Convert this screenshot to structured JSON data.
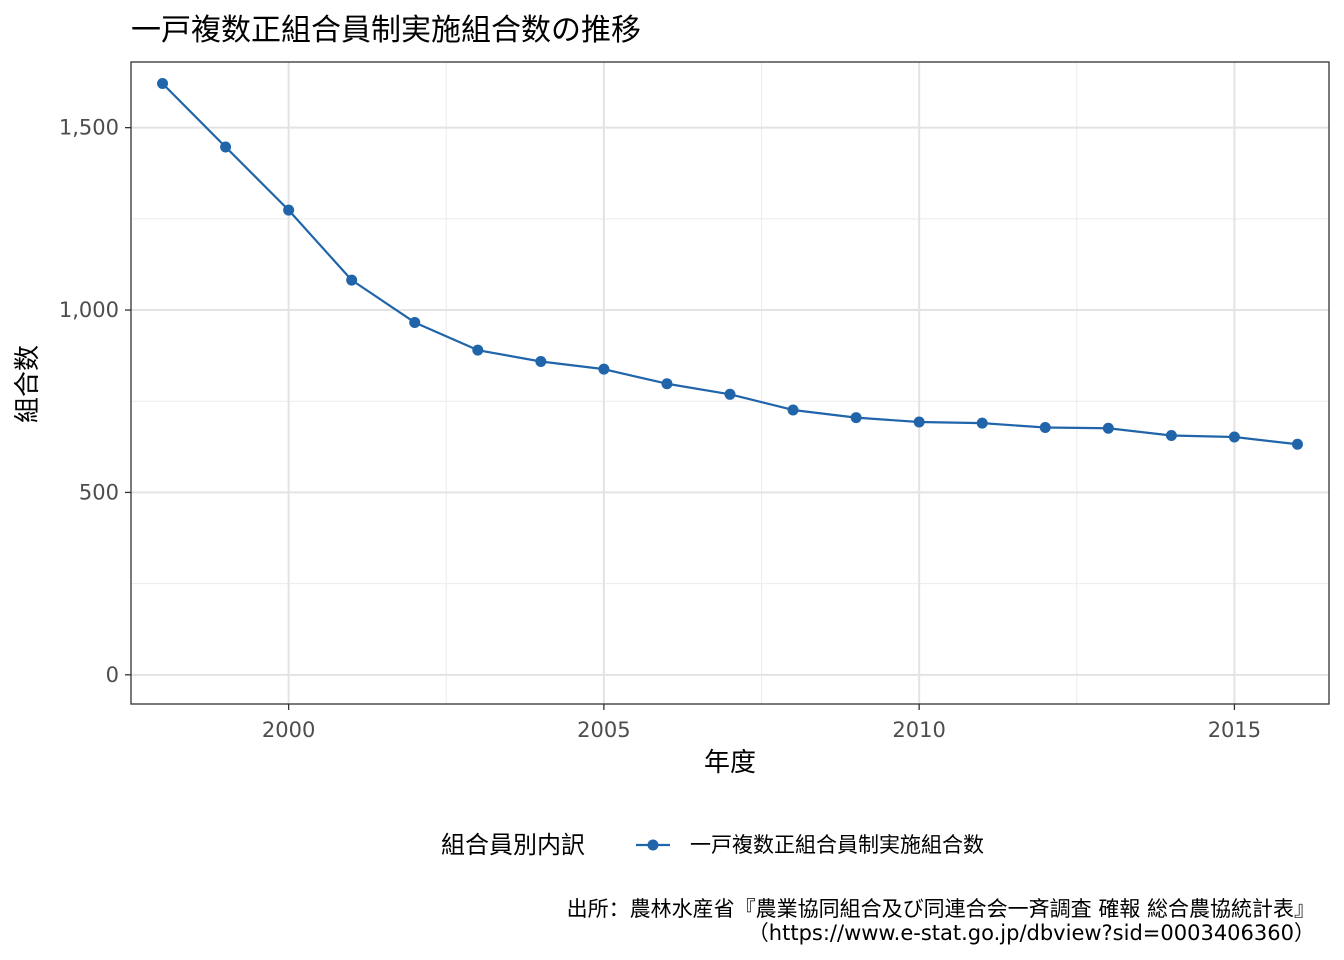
{
  "chart_data": {
    "type": "line",
    "title": "一戸複数正組合員制実施組合数の推移",
    "xlabel": "年度",
    "ylabel": "組合数",
    "xlim": [
      1997.5,
      2016.5
    ],
    "ylim": [
      -80,
      1680
    ],
    "x_ticks": [
      2000,
      2005,
      2010,
      2015
    ],
    "x_tick_labels": [
      "2000",
      "2005",
      "2010",
      "2015"
    ],
    "y_ticks": [
      0,
      500,
      1000,
      1500
    ],
    "y_tick_labels": [
      "0",
      "500",
      "1,000",
      "1,500"
    ],
    "grid": true,
    "legend_position": "bottom",
    "legend_title": "組合員別内訳",
    "series": [
      {
        "name": "一戸複数正組合員制実施組合数",
        "color": "#2064aa",
        "x": [
          1998,
          1999,
          2000,
          2001,
          2002,
          2003,
          2004,
          2005,
          2006,
          2007,
          2008,
          2009,
          2010,
          2011,
          2012,
          2013,
          2014,
          2015,
          2016
        ],
        "values": [
          1621,
          1447,
          1274,
          1082,
          966,
          890,
          859,
          838,
          798,
          769,
          726,
          705,
          693,
          690,
          678,
          676,
          656,
          652,
          632
        ]
      }
    ],
    "caption_lines": [
      "出所：農林水産省『農業協同組合及び同連合会一斉調査 確報 総合農協統計表』",
      "（https://www.e-stat.go.jp/dbview?sid=0003406360）"
    ]
  }
}
